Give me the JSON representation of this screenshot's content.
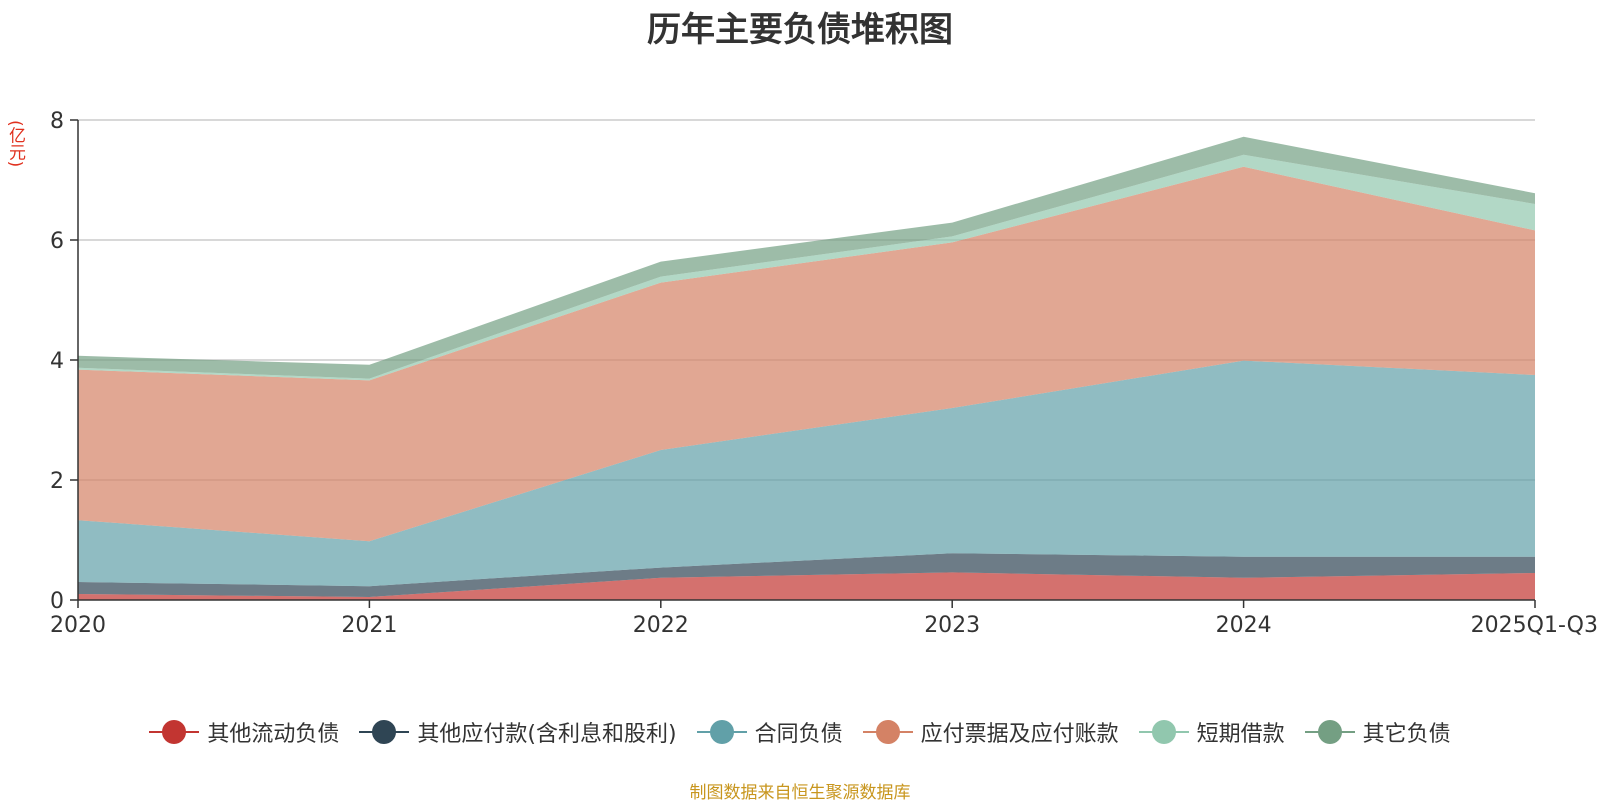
{
  "chart_data": {
    "type": "area",
    "stacked": true,
    "title": "历年主要负债堆积图",
    "ylabel": "(亿元)",
    "xlabel": "",
    "categories": [
      "2020",
      "2021",
      "2022",
      "2023",
      "2024",
      "2025Q1-Q3"
    ],
    "ylim": [
      0,
      8
    ],
    "yticks": [
      "0",
      "2",
      "4",
      "6",
      "8"
    ],
    "grid": true,
    "legend_position": "bottom",
    "series": [
      {
        "name": "其他流动负债",
        "values": [
          0.1,
          0.05,
          0.37,
          0.46,
          0.37,
          0.45
        ],
        "color": "#c23531"
      },
      {
        "name": "其他应付款(含利息和股利)",
        "values": [
          0.2,
          0.18,
          0.17,
          0.32,
          0.35,
          0.27
        ],
        "color": "#2f4554"
      },
      {
        "name": "合同负债",
        "values": [
          1.03,
          0.75,
          1.96,
          2.42,
          3.27,
          3.03
        ],
        "color": "#61a0a8"
      },
      {
        "name": "应付票据及应付账款",
        "values": [
          2.51,
          2.68,
          2.79,
          2.76,
          3.23,
          2.41
        ],
        "color": "#d48265"
      },
      {
        "name": "短期借款",
        "values": [
          0.03,
          0.03,
          0.1,
          0.1,
          0.2,
          0.44
        ],
        "color": "#91c7ae"
      },
      {
        "name": "其它负债",
        "values": [
          0.2,
          0.23,
          0.25,
          0.23,
          0.3,
          0.18
        ],
        "color": "#749f83"
      }
    ],
    "source_note": "制图数据来自恒生聚源数据库"
  }
}
